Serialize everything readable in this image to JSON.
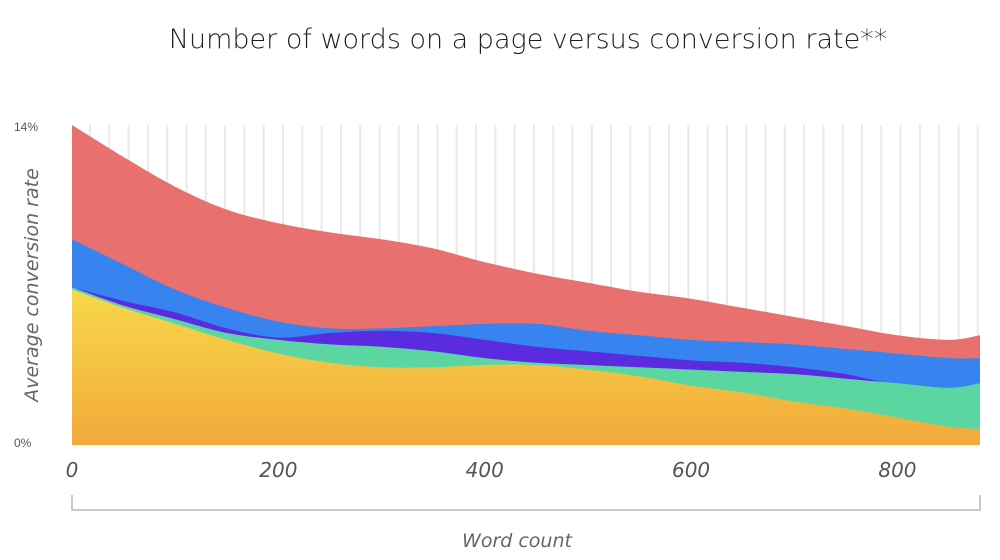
{
  "chart_data": {
    "type": "area",
    "title": "Number of words on a page versus conversion rate**",
    "xlabel": "Word count",
    "ylabel": "Average conversion rate",
    "x_tick_labels": [
      "0",
      "200",
      "400",
      "600",
      "800"
    ],
    "x_ticks": [
      0,
      200,
      400,
      600,
      800
    ],
    "y_tick_labels": [
      "0%",
      "14%"
    ],
    "xlim": [
      0,
      880
    ],
    "ylim": [
      0,
      14
    ],
    "x": [
      0,
      50,
      100,
      150,
      200,
      250,
      300,
      350,
      400,
      450,
      500,
      550,
      600,
      650,
      700,
      750,
      800,
      850,
      880
    ],
    "series": [
      {
        "color": "#e8716f",
        "values": [
          14.0,
          12.6,
          11.3,
          10.3,
          9.7,
          9.3,
          9.0,
          8.6,
          8.0,
          7.5,
          7.1,
          6.7,
          6.4,
          6.0,
          5.6,
          5.2,
          4.8,
          4.6,
          4.8
        ]
      },
      {
        "color": "#3784f0",
        "values": [
          9.0,
          7.9,
          6.8,
          6.0,
          5.4,
          5.1,
          5.1,
          5.2,
          5.3,
          5.3,
          5.0,
          4.8,
          4.6,
          4.5,
          4.4,
          4.2,
          4.0,
          3.8,
          3.8
        ]
      },
      {
        "color": "#5b2be0",
        "values": [
          6.9,
          6.3,
          5.8,
          5.1,
          4.7,
          4.9,
          5.0,
          4.9,
          4.6,
          4.3,
          4.1,
          3.9,
          3.7,
          3.6,
          3.4,
          3.1,
          2.6,
          2.1,
          2.7
        ]
      },
      {
        "color": "#5cd6a0",
        "values": [
          6.9,
          6.1,
          5.5,
          4.9,
          4.6,
          4.4,
          4.3,
          4.1,
          3.8,
          3.6,
          3.5,
          3.4,
          3.3,
          3.2,
          3.1,
          2.9,
          2.7,
          2.5,
          2.7
        ]
      },
      {
        "color": "#f4b942",
        "values": [
          6.8,
          6.0,
          5.3,
          4.6,
          4.0,
          3.6,
          3.4,
          3.4,
          3.5,
          3.5,
          3.3,
          3.0,
          2.6,
          2.3,
          1.9,
          1.6,
          1.2,
          0.8,
          0.7
        ]
      }
    ]
  }
}
